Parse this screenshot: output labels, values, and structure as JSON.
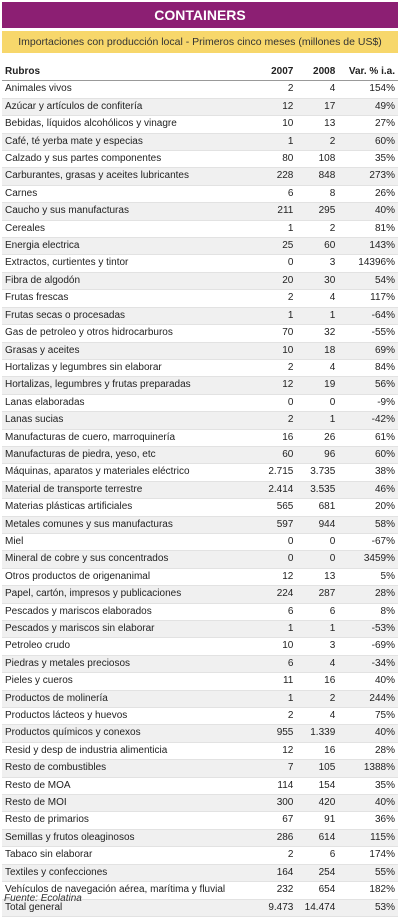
{
  "header": {
    "title": "CONTAINERS",
    "subtitle": "Importaciones con producción local - Primeros cinco meses (millones de US$)"
  },
  "table": {
    "columns": [
      "Rubros",
      "2007",
      "2008",
      "Var. % i.a."
    ],
    "rows": [
      [
        "Animales vivos",
        "2",
        "4",
        "154%"
      ],
      [
        "Azúcar y artículos de confitería",
        "12",
        "17",
        "49%"
      ],
      [
        "Bebidas, líquidos alcohólicos y vinagre",
        "10",
        "13",
        "27%"
      ],
      [
        "Café, té yerba mate y especias",
        "1",
        "2",
        "60%"
      ],
      [
        "Calzado y sus partes componentes",
        "80",
        "108",
        "35%"
      ],
      [
        "Carburantes, grasas y aceites lubricantes",
        "228",
        "848",
        "273%"
      ],
      [
        "Carnes",
        "6",
        "8",
        "26%"
      ],
      [
        "Caucho y sus manufacturas",
        "211",
        "295",
        "40%"
      ],
      [
        "Cereales",
        "1",
        "2",
        "81%"
      ],
      [
        "Energia electrica",
        "25",
        "60",
        "143%"
      ],
      [
        "Extractos, curtientes y tintor",
        "0",
        "3",
        "14396%"
      ],
      [
        "Fibra de algodón",
        "20",
        "30",
        "54%"
      ],
      [
        "Frutas frescas",
        "2",
        "4",
        "117%"
      ],
      [
        "Frutas secas o procesadas",
        "1",
        "1",
        "-64%"
      ],
      [
        "Gas de petroleo y otros hidrocarburos",
        "70",
        "32",
        "-55%"
      ],
      [
        "Grasas y aceites",
        "10",
        "18",
        "69%"
      ],
      [
        "Hortalizas y legumbres sin elaborar",
        "2",
        "4",
        "84%"
      ],
      [
        "Hortalizas, legumbres y frutas preparadas",
        "12",
        "19",
        "56%"
      ],
      [
        "Lanas elaboradas",
        "0",
        "0",
        "-9%"
      ],
      [
        "Lanas sucias",
        "2",
        "1",
        "-42%"
      ],
      [
        "Manufacturas de cuero, marroquinería",
        "16",
        "26",
        "61%"
      ],
      [
        "Manufacturas de piedra, yeso, etc",
        "60",
        "96",
        "60%"
      ],
      [
        "Máquinas, aparatos y materiales eléctrico",
        "2.715",
        "3.735",
        "38%"
      ],
      [
        "Material de transporte terrestre",
        "2.414",
        "3.535",
        "46%"
      ],
      [
        "Materias plásticas artificiales",
        "565",
        "681",
        "20%"
      ],
      [
        "Metales comunes y sus manufacturas",
        "597",
        "944",
        "58%"
      ],
      [
        "Miel",
        "0",
        "0",
        "-67%"
      ],
      [
        "Mineral de cobre y sus concentrados",
        "0",
        "0",
        "3459%"
      ],
      [
        "Otros productos de origenanimal",
        "12",
        "13",
        "5%"
      ],
      [
        "Papel, cartón, impresos y publicaciones",
        "224",
        "287",
        "28%"
      ],
      [
        "Pescados y mariscos elaborados",
        "6",
        "6",
        "8%"
      ],
      [
        "Pescados y mariscos sin elaborar",
        "1",
        "1",
        "-53%"
      ],
      [
        "Petroleo crudo",
        "10",
        "3",
        "-69%"
      ],
      [
        "Piedras y metales preciosos",
        "6",
        "4",
        "-34%"
      ],
      [
        "Pieles y cueros",
        "11",
        "16",
        "40%"
      ],
      [
        "Productos de molinería",
        "1",
        "2",
        "244%"
      ],
      [
        "Productos lácteos y huevos",
        "2",
        "4",
        "75%"
      ],
      [
        "Productos químicos y conexos",
        "955",
        "1.339",
        "40%"
      ],
      [
        "Resid y desp de industria alimenticia",
        "12",
        "16",
        "28%"
      ],
      [
        "Resto de combustibles",
        "7",
        "105",
        "1388%"
      ],
      [
        "Resto de MOA",
        "114",
        "154",
        "35%"
      ],
      [
        "Resto de MOI",
        "300",
        "420",
        "40%"
      ],
      [
        "Resto de primarios",
        "67",
        "91",
        "36%"
      ],
      [
        "Semillas y frutos oleaginosos",
        "286",
        "614",
        "115%"
      ],
      [
        "Tabaco sin elaborar",
        "2",
        "6",
        "174%"
      ],
      [
        "Textiles y confecciones",
        "164",
        "254",
        "55%"
      ],
      [
        "Vehículos de navegación aérea, marítima y fluvial",
        "232",
        "654",
        "182%"
      ],
      [
        "Total general",
        "9.473",
        "14.474",
        "53%"
      ]
    ]
  },
  "footer": {
    "source": "Fuente: Ecolatina"
  }
}
